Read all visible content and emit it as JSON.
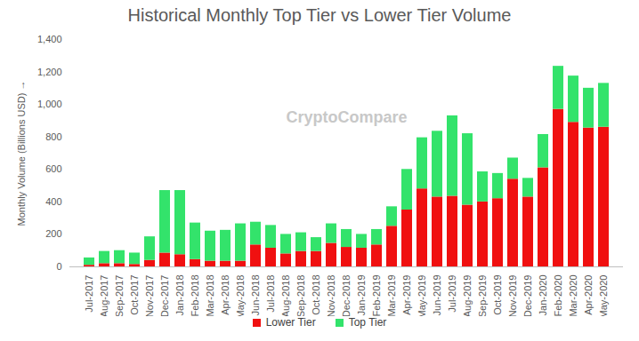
{
  "chart_data": {
    "type": "bar",
    "title": "Historical Monthly Top Tier vs Lower Tier Volume",
    "y_label": "Monthly Volume (Billions USD)",
    "annotations": [
      "CryptoCompare"
    ],
    "stacked": true,
    "grid": false,
    "legend": "bottom",
    "categories": [
      "Jul-2017",
      "Aug-2017",
      "Sep-2017",
      "Oct-2017",
      "Nov-2017",
      "Dec-2017",
      "Jan-2018",
      "Feb-2018",
      "Mar-2018",
      "Apr-2018",
      "May-2018",
      "Jun-2018",
      "Jul-2018",
      "Aug-2018",
      "Sep-2018",
      "Oct-2018",
      "Nov-2018",
      "Dec-2018",
      "Jan-2019",
      "Feb-2019",
      "Mar-2019",
      "Apr-2019",
      "May-2019",
      "Jun-2019",
      "Jul-2019",
      "Aug-2019",
      "Sep-2019",
      "Oct-2019",
      "Nov-2019",
      "Dec-2019",
      "Jan-2020",
      "Feb-2020",
      "Mar-2020",
      "Apr-2020",
      "May-2020"
    ],
    "series": [
      {
        "name": "Lower Tier",
        "color": "#f01010",
        "values": [
          10,
          20,
          20,
          15,
          40,
          85,
          75,
          45,
          35,
          35,
          35,
          135,
          115,
          80,
          95,
          95,
          145,
          120,
          115,
          135,
          250,
          350,
          480,
          430,
          435,
          380,
          400,
          420,
          540,
          430,
          610,
          970,
          890,
          855,
          860
        ]
      },
      {
        "name": "Top Tier",
        "color": "#33e36b",
        "values": [
          45,
          75,
          80,
          70,
          145,
          385,
          395,
          225,
          185,
          190,
          230,
          140,
          140,
          120,
          115,
          85,
          120,
          110,
          85,
          95,
          120,
          250,
          315,
          405,
          495,
          440,
          185,
          155,
          130,
          115,
          205,
          265,
          285,
          245,
          270
        ]
      }
    ],
    "ylim": [
      0,
      1400
    ],
    "yticks": [
      0,
      200,
      400,
      600,
      800,
      1000,
      1200,
      1400
    ]
  }
}
